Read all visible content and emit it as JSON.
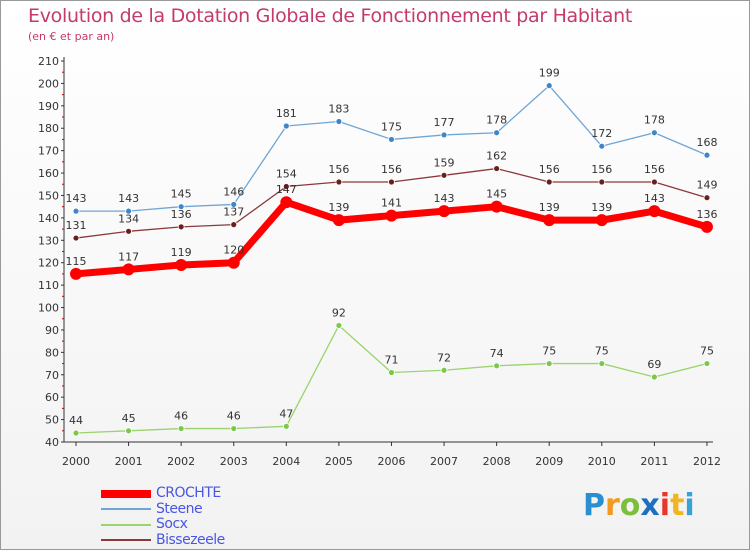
{
  "title": "Evolution de la Dotation Globale de Fonctionnement par Habitant",
  "subtitle": "(en € et par an)",
  "chart_data": {
    "type": "line",
    "title": "Evolution de la Dotation Globale de Fonctionnement par Habitant",
    "subtitle": "(en € et par an)",
    "xlabel": "",
    "ylabel": "",
    "x": [
      "2000",
      "2001",
      "2002",
      "2003",
      "2004",
      "2005",
      "2006",
      "2007",
      "2008",
      "2009",
      "2010",
      "2011",
      "2012"
    ],
    "yticks": [
      40,
      50,
      60,
      70,
      80,
      90,
      100,
      110,
      120,
      130,
      140,
      150,
      160,
      170,
      180,
      190,
      200,
      210
    ],
    "ylim": [
      40,
      210
    ],
    "grid": false,
    "legend_position": "bottom-left",
    "series": [
      {
        "name": "CROCHTE",
        "color": "#ff0000",
        "values": [
          115,
          117,
          119,
          120,
          147,
          139,
          141,
          143,
          145,
          139,
          139,
          143,
          136
        ]
      },
      {
        "name": "Steene",
        "color": "#6fa6d6",
        "values": [
          143,
          143,
          145,
          146,
          181,
          183,
          175,
          177,
          178,
          199,
          172,
          178,
          168
        ]
      },
      {
        "name": "Socx",
        "color": "#9ad46e",
        "values": [
          44,
          45,
          46,
          46,
          47,
          92,
          71,
          72,
          74,
          75,
          75,
          69,
          75
        ]
      },
      {
        "name": "Bissezeele",
        "color": "#8b3a3a",
        "values": [
          131,
          134,
          136,
          137,
          154,
          156,
          156,
          159,
          162,
          156,
          156,
          156,
          149
        ]
      }
    ],
    "data_labels": [
      {
        "series": "CROCHTE",
        "labels": [
          "115",
          "117",
          "119",
          "120",
          "147",
          "139",
          "141",
          "143",
          "145",
          "139",
          "139",
          "143",
          "136"
        ]
      },
      {
        "series": "Steene",
        "labels": [
          "143",
          "143",
          "145",
          "146",
          "181",
          "183",
          "175",
          "177",
          "178",
          "199",
          "172",
          "178",
          "168"
        ]
      },
      {
        "series": "Socx",
        "labels": [
          "44",
          "45",
          "46",
          "46",
          "47",
          "92",
          "71",
          "72",
          "74",
          "75",
          "75",
          "69",
          "75"
        ]
      },
      {
        "series": "Bissezeele",
        "labels": [
          "131",
          "134",
          "136",
          "137",
          "154",
          "156",
          "156",
          "159",
          "162",
          "156",
          "156",
          "156",
          "149"
        ]
      }
    ]
  },
  "legend": [
    {
      "label": "CROCHTE",
      "color": "#ff0000"
    },
    {
      "label": "Steene",
      "color": "#6fa6d6"
    },
    {
      "label": "Socx",
      "color": "#9ad46e"
    },
    {
      "label": "Bissezeele",
      "color": "#8b3a3a"
    }
  ],
  "logo": {
    "text": "Proxiti",
    "letters": [
      "P",
      "r",
      "o",
      "x",
      "i",
      "t",
      "i"
    ],
    "colors": [
      "#2a8fd0",
      "#f29a1f",
      "#7bbf3a",
      "#1f6fc0",
      "#e8362b",
      "#f2b51f",
      "#3aa0d8"
    ]
  }
}
